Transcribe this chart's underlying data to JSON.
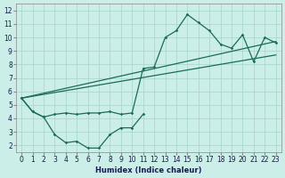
{
  "xlabel": "Humidex (Indice chaleur)",
  "bg_color": "#cceee8",
  "grid_color": "#aad8d0",
  "line_color": "#1a6b5a",
  "xlim": [
    -0.5,
    23.5
  ],
  "ylim": [
    1.5,
    12.5
  ],
  "xticks": [
    0,
    1,
    2,
    3,
    4,
    5,
    6,
    7,
    8,
    9,
    10,
    11,
    12,
    13,
    14,
    15,
    16,
    17,
    18,
    19,
    20,
    21,
    22,
    23
  ],
  "yticks": [
    2,
    3,
    4,
    5,
    6,
    7,
    8,
    9,
    10,
    11,
    12
  ],
  "line1_x": [
    0,
    1,
    2,
    3,
    4,
    5,
    6,
    7,
    8,
    9,
    10,
    11,
    12,
    13,
    14,
    15,
    16,
    17,
    18,
    19,
    20,
    21,
    22,
    23
  ],
  "line1_y": [
    5.5,
    4.5,
    4.1,
    4.3,
    4.4,
    4.3,
    4.4,
    4.4,
    4.5,
    4.3,
    4.4,
    7.7,
    7.8,
    10.0,
    10.5,
    11.7,
    11.1,
    10.5,
    9.5,
    9.2,
    10.2,
    8.2,
    10.0,
    9.6
  ],
  "line2_x": [
    0,
    1,
    2,
    3,
    4,
    5,
    6,
    7,
    8,
    9,
    10,
    11
  ],
  "line2_y": [
    5.5,
    4.5,
    4.1,
    2.8,
    2.2,
    2.3,
    1.8,
    1.8,
    2.8,
    3.3,
    3.3,
    4.3
  ],
  "line3_x": [
    0,
    23
  ],
  "line3_y": [
    5.5,
    9.7
  ],
  "line4_x": [
    0,
    23
  ],
  "line4_y": [
    5.5,
    8.7
  ]
}
